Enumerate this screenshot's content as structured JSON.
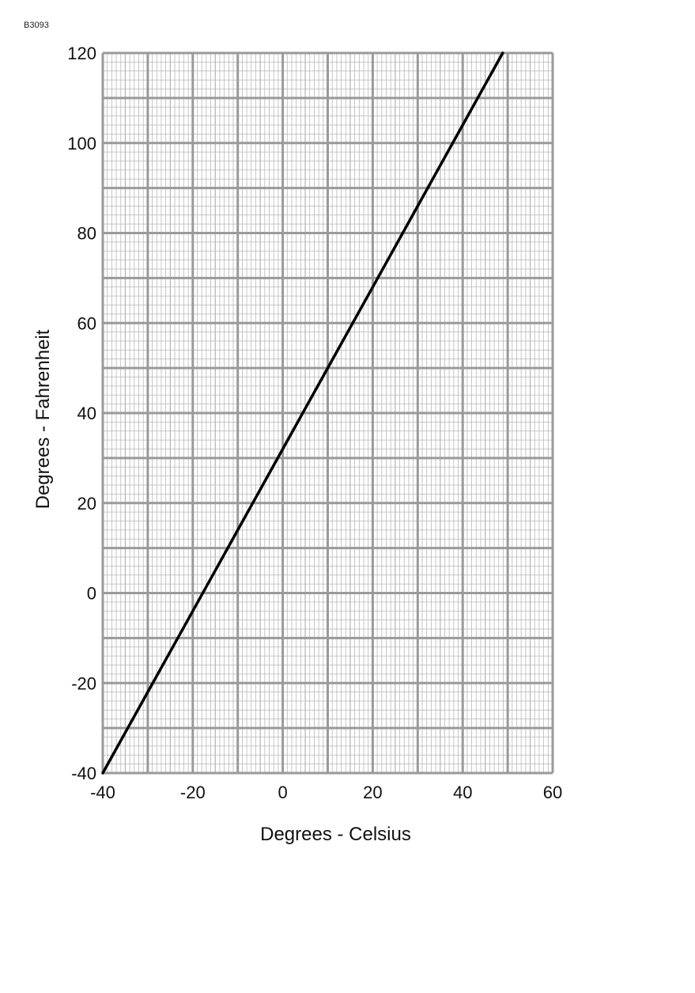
{
  "figure_code": "B3093",
  "chart_data": {
    "type": "line",
    "title": "",
    "xlabel": "Degrees - Celsius",
    "ylabel": "Degrees - Fahrenheit",
    "xlim": [
      -40,
      60
    ],
    "ylim": [
      -40,
      120
    ],
    "x_ticks": [
      "-40",
      "-20",
      "0",
      "20",
      "40",
      "60"
    ],
    "y_ticks": [
      "120",
      "100",
      "80",
      "60",
      "40",
      "20",
      "0",
      "-20",
      "-40"
    ],
    "grid": true,
    "legend": "none",
    "series": [
      {
        "x": [
          -40,
          -30,
          -20,
          -10,
          0,
          10,
          20,
          30,
          40,
          48.9
        ],
        "y": [
          -40,
          -22,
          -4,
          14,
          32,
          50,
          68,
          86,
          104,
          120
        ]
      }
    ],
    "colors": {
      "major_grid": "#9a9a9a",
      "minor_grid": "#b8b8b8",
      "line": "#000000",
      "text": "#111111"
    }
  }
}
